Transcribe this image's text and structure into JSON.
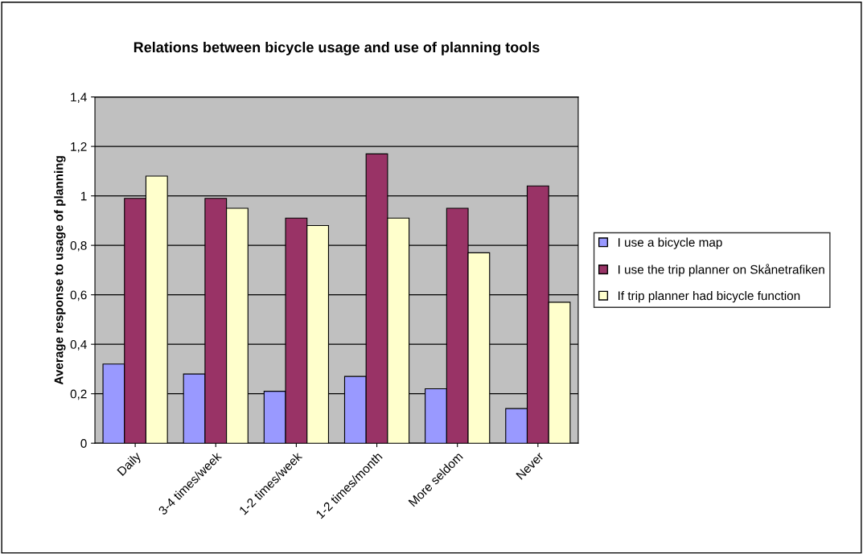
{
  "chart_data": {
    "type": "bar",
    "title": "Relations between bicycle usage and use of planning tools",
    "ylabel": "Average response to usage of planning",
    "categories": [
      "Daily",
      "3-4 times/week",
      "1-2 times/week",
      "1-2 times/month",
      "More seldom",
      "Never"
    ],
    "series": [
      {
        "name": "I use a bicycle map",
        "color": "#9999ff",
        "values": [
          0.32,
          0.28,
          0.21,
          0.27,
          0.22,
          0.14
        ]
      },
      {
        "name": "I use the trip planner on Skånetrafiken",
        "color": "#993366",
        "values": [
          0.99,
          0.99,
          0.91,
          1.17,
          0.95,
          1.04
        ]
      },
      {
        "name": "If trip planner had bicycle function",
        "color": "#ffffcc",
        "values": [
          1.08,
          0.95,
          0.88,
          0.91,
          0.77,
          0.57
        ]
      }
    ],
    "ylim": [
      0,
      1.4
    ],
    "yticks": [
      {
        "value": 0,
        "label": "0"
      },
      {
        "value": 0.2,
        "label": "0,2"
      },
      {
        "value": 0.4,
        "label": "0,4"
      },
      {
        "value": 0.6,
        "label": "0,6"
      },
      {
        "value": 0.8,
        "label": "0,8"
      },
      {
        "value": 1,
        "label": "1"
      },
      {
        "value": 1.2,
        "label": "1,2"
      },
      {
        "value": 1.4,
        "label": "1,4"
      }
    ],
    "grid": "y",
    "legend": "right"
  }
}
